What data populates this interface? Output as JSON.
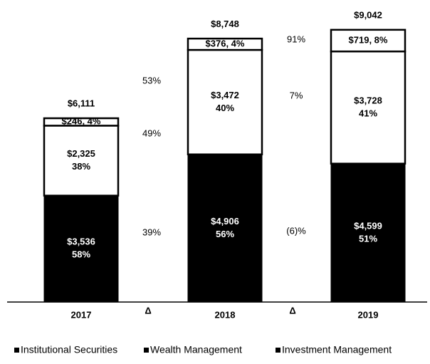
{
  "chart_data": {
    "type": "stacked_bar",
    "categories": [
      "2017",
      "2018",
      "2019"
    ],
    "series": [
      {
        "name": "Institutional Securities",
        "color": "#000000",
        "values": [
          3536,
          4906,
          4599
        ],
        "value_labels": [
          "$3,536",
          "$4,906",
          "$4,599"
        ],
        "share_labels": [
          "58%",
          "56%",
          "51%"
        ]
      },
      {
        "name": "Wealth Management",
        "color": "#ffffff",
        "values": [
          2325,
          3472,
          3728
        ],
        "value_labels": [
          "$2,325",
          "$3,472",
          "$3,728"
        ],
        "share_labels": [
          "38%",
          "40%",
          "41%"
        ]
      },
      {
        "name": "Investment Management",
        "color": "#ffffff",
        "values": [
          246,
          376,
          719
        ],
        "value_labels": [
          "$246, 4%",
          "$376, 4%",
          "$719, 8%"
        ]
      }
    ],
    "totals": [
      6111,
      8748,
      9042
    ],
    "total_labels": [
      "$6,111",
      "$8,748",
      "$9,042"
    ],
    "changes": [
      {
        "label": "Δ",
        "values": [
          "39%",
          "49%",
          "53%"
        ]
      },
      {
        "label": "Δ",
        "values": [
          "(6)%",
          "7%",
          "91%"
        ]
      }
    ]
  }
}
